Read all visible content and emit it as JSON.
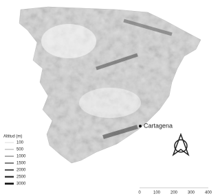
{
  "legend": {
    "title": "Altitud (m)",
    "items": [
      "100",
      "500",
      "1000",
      "1500",
      "2000",
      "2500",
      "3000"
    ]
  },
  "city": "Cartagena",
  "scale_bar": [
    "0",
    "100",
    "200",
    "300",
    "400"
  ]
}
